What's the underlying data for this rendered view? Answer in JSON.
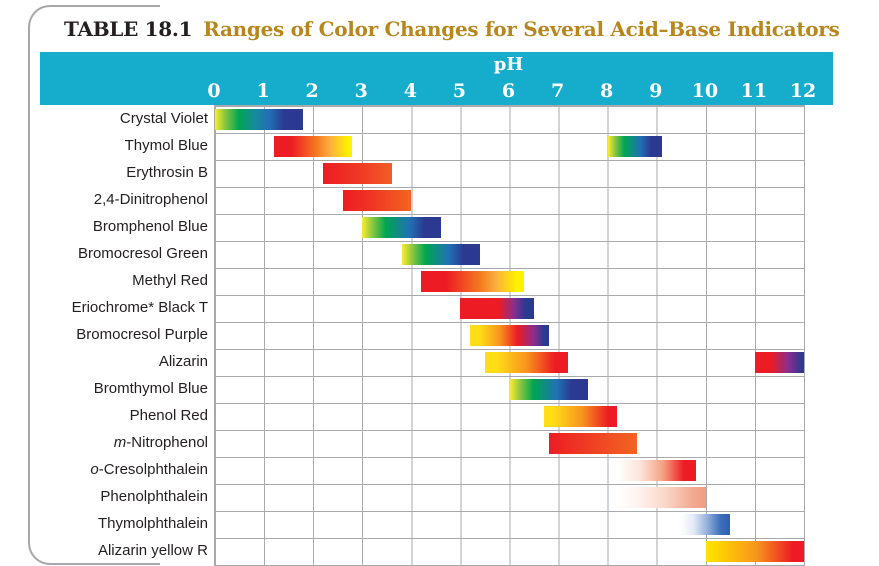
{
  "header": {
    "table_label": "TABLE 18.1",
    "title": "Ranges of Color Changes for Several Acid–Base Indicators"
  },
  "axis": {
    "label": "pH",
    "ticks": [
      "0",
      "1",
      "2",
      "3",
      "4",
      "5",
      "6",
      "7",
      "8",
      "9",
      "10",
      "11",
      "12"
    ]
  },
  "colors": {
    "header_band": "#15ADCB",
    "title_accent": "#B7871E",
    "title_text": "#231F20",
    "label_text": "#231F20",
    "grid_line": "#A7A9AC",
    "tick_text": "#FFFFFF"
  },
  "chart_data": {
    "type": "bar",
    "subtype": "horizontal-range",
    "title": "Ranges of Color Changes for Several Acid–Base Indicators",
    "xlabel": "pH",
    "x_range": [
      0,
      12
    ],
    "x_ticks": [
      0,
      1,
      2,
      3,
      4,
      5,
      6,
      7,
      8,
      9,
      10,
      11,
      12
    ],
    "grid": true,
    "indicators": [
      {
        "italic_prefix": "",
        "label": "Crystal Violet",
        "ranges": [
          {
            "ph_start": 0.0,
            "ph_end": 1.8,
            "color_change": "yellow to green to blue-violet",
            "stops": [
              "#F9ED32 0%",
              "#8DC63F 11%",
              "#00A651 27%",
              "#17899E 46%",
              "#2171B5 61%",
              "#2B3990 79%"
            ]
          }
        ]
      },
      {
        "italic_prefix": "",
        "label": "Thymol Blue",
        "ranges": [
          {
            "ph_start": 1.2,
            "ph_end": 2.8,
            "color_change": "red to orange to yellow",
            "stops": [
              "#ED1C24 0%",
              "#ED1C24 22%",
              "#F47B20 55%",
              "#FBAF3F 72%",
              "#FFF100 95%"
            ]
          },
          {
            "ph_start": 8.0,
            "ph_end": 9.1,
            "color_change": "yellow to green to blue",
            "stops": [
              "#F9ED32 0%",
              "#8DC63F 13%",
              "#00A651 30%",
              "#2171B5 60%",
              "#2B3990 80%"
            ]
          }
        ]
      },
      {
        "italic_prefix": "",
        "label": "Erythrosin B",
        "ranges": [
          {
            "ph_start": 2.2,
            "ph_end": 3.6,
            "color_change": "red to red-orange",
            "stops": [
              "#ED1C24 0%",
              "#EE3424 45%",
              "#F15E27 100%"
            ]
          }
        ]
      },
      {
        "italic_prefix": "",
        "label": "2,4-Dinitrophenol",
        "ranges": [
          {
            "ph_start": 2.6,
            "ph_end": 4.0,
            "color_change": "red to orange",
            "stops": [
              "#ED1C24 0%",
              "#EE3424 40%",
              "#F26522 100%"
            ]
          }
        ]
      },
      {
        "italic_prefix": "",
        "label": "Bromphenol Blue",
        "ranges": [
          {
            "ph_start": 3.0,
            "ph_end": 4.6,
            "color_change": "yellow to green to blue",
            "stops": [
              "#F9ED32 0%",
              "#8DC63F 13%",
              "#00A651 30%",
              "#2171B5 60%",
              "#2B3990 79%"
            ]
          }
        ]
      },
      {
        "italic_prefix": "",
        "label": "Bromocresol Green",
        "ranges": [
          {
            "ph_start": 3.8,
            "ph_end": 5.4,
            "color_change": "yellow to green to blue",
            "stops": [
              "#F9ED32 0%",
              "#8DC63F 13%",
              "#00A651 30%",
              "#2171B5 60%",
              "#2B3990 79%"
            ]
          }
        ]
      },
      {
        "italic_prefix": "",
        "label": "Methyl Red",
        "ranges": [
          {
            "ph_start": 4.2,
            "ph_end": 6.3,
            "color_change": "red to orange to yellow",
            "stops": [
              "#ED1C24 0%",
              "#ED1C24 25%",
              "#F47B20 58%",
              "#FBAF3F 73%",
              "#FFF100 93%"
            ]
          }
        ]
      },
      {
        "italic_prefix": "",
        "label": "Eriochrome* Black T",
        "ranges": [
          {
            "ph_start": 5.0,
            "ph_end": 6.5,
            "color_change": "red to blue",
            "stops": [
              "#ED1C24 0%",
              "#ED1C24 52%",
              "#8A2E8E 73%",
              "#2B3990 88%"
            ]
          }
        ]
      },
      {
        "italic_prefix": "",
        "label": "Bromocresol Purple",
        "ranges": [
          {
            "ph_start": 5.2,
            "ph_end": 6.8,
            "color_change": "yellow to red to purple",
            "stops": [
              "#FFDE17 0%",
              "#FFDE17 12%",
              "#F7941D 38%",
              "#ED1C24 60%",
              "#8A2E8E 81%",
              "#2B3990 94%"
            ]
          }
        ]
      },
      {
        "italic_prefix": "",
        "label": "Alizarin",
        "ranges": [
          {
            "ph_start": 5.5,
            "ph_end": 7.2,
            "color_change": "yellow to orange to red",
            "stops": [
              "#FFDE17 0%",
              "#FFDE17 14%",
              "#F7941D 50%",
              "#ED1C24 84%"
            ]
          },
          {
            "ph_start": 11.0,
            "ph_end": 12.0,
            "color_change": "red to purple",
            "stops": [
              "#ED1C24 0%",
              "#ED1C24 32%",
              "#8A2E8E 68%",
              "#2B3990 96%"
            ]
          }
        ]
      },
      {
        "italic_prefix": "",
        "label": "Bromthymol Blue",
        "ranges": [
          {
            "ph_start": 6.0,
            "ph_end": 7.6,
            "color_change": "yellow to green to blue",
            "stops": [
              "#F9ED32 0%",
              "#8DC63F 13%",
              "#00A651 30%",
              "#2171B5 60%",
              "#2B3990 79%"
            ]
          }
        ]
      },
      {
        "italic_prefix": "",
        "label": "Phenol Red",
        "ranges": [
          {
            "ph_start": 6.7,
            "ph_end": 8.2,
            "color_change": "yellow to orange to red",
            "stops": [
              "#FFDE17 0%",
              "#FFDE17 12%",
              "#F7941D 52%",
              "#ED1C24 88%"
            ]
          }
        ]
      },
      {
        "italic_prefix": "m",
        "label": "-Nitrophenol",
        "ranges": [
          {
            "ph_start": 6.8,
            "ph_end": 8.6,
            "color_change": "red to orange",
            "stops": [
              "#ED1C24 0%",
              "#EE3A24 40%",
              "#F26522 100%"
            ]
          }
        ]
      },
      {
        "italic_prefix": "o",
        "label": "-Cresolphthalein",
        "ranges": [
          {
            "ph_start": 8.2,
            "ph_end": 9.8,
            "color_change": "colorless to red",
            "stops": [
              "#FFFFFF 0%",
              "#FCE3D8 30%",
              "#F5A284 58%",
              "#ED1C24 85%"
            ]
          }
        ]
      },
      {
        "italic_prefix": "",
        "label": "Phenolphthalein",
        "ranges": [
          {
            "ph_start": 8.2,
            "ph_end": 10.0,
            "color_change": "colorless to pink",
            "stops": [
              "#FFFFFF 0%",
              "#FEF2ED 25%",
              "#F9D6C8 55%",
              "#F2AB92 85%",
              "#F09B82 100%"
            ]
          }
        ]
      },
      {
        "italic_prefix": "",
        "label": "Thymolphthalein",
        "ranges": [
          {
            "ph_start": 9.4,
            "ph_end": 10.5,
            "color_change": "colorless to blue",
            "stops": [
              "#FFFFFF 0%",
              "#FFFFFF 8%",
              "#E4EBF6 32%",
              "#93AFDA 58%",
              "#3E6FBA 82%",
              "#2E5FAE 100%"
            ]
          }
        ]
      },
      {
        "italic_prefix": "",
        "label": "Alizarin yellow R",
        "ranges": [
          {
            "ph_start": 10.0,
            "ph_end": 12.0,
            "color_change": "yellow to orange to red",
            "stops": [
              "#FFE400 0%",
              "#FFD400 12%",
              "#F7941D 52%",
              "#ED1C24 88%"
            ]
          }
        ]
      }
    ]
  }
}
